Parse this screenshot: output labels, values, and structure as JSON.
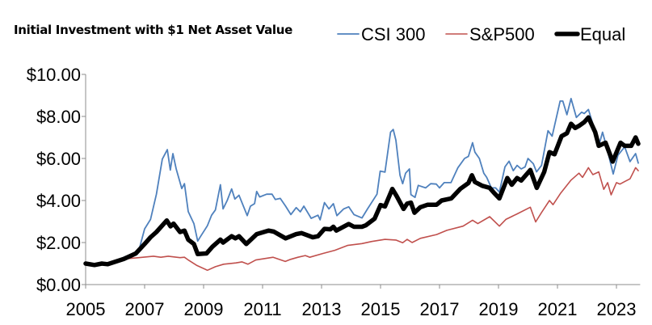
{
  "chart_data": {
    "type": "line",
    "title": "Initial Investment with $1 Net Asset Value",
    "xlabel": "",
    "ylabel": "",
    "xlim": [
      2005,
      2023.75
    ],
    "ylim": [
      0,
      10
    ],
    "x_ticks": [
      "2005",
      "2007",
      "2009",
      "2011",
      "2013",
      "2015",
      "2017",
      "2019",
      "2021",
      "2023"
    ],
    "y_ticks": [
      "$0.00",
      "$2.00",
      "$4.00",
      "$6.00",
      "$8.00",
      "$10.00"
    ],
    "grid": false,
    "legend_position": "top-right",
    "series": [
      {
        "name": "CSI 300",
        "color": "#4F81BD",
        "points": [
          [
            2005,
            1.0
          ],
          [
            2005.3,
            0.95
          ],
          [
            2005.6,
            1.0
          ],
          [
            2006.0,
            1.1
          ],
          [
            2006.3,
            1.3
          ],
          [
            2006.8,
            1.6
          ],
          [
            2007.0,
            2.65
          ],
          [
            2007.2,
            3.1
          ],
          [
            2007.4,
            4.3
          ],
          [
            2007.6,
            5.97
          ],
          [
            2007.77,
            6.42
          ],
          [
            2007.87,
            5.45
          ],
          [
            2007.96,
            6.23
          ],
          [
            2008.07,
            5.5
          ],
          [
            2008.26,
            4.57
          ],
          [
            2008.35,
            4.8
          ],
          [
            2008.48,
            3.47
          ],
          [
            2008.67,
            2.9
          ],
          [
            2008.8,
            2.07
          ],
          [
            2008.9,
            2.3
          ],
          [
            2009.13,
            2.8
          ],
          [
            2009.27,
            3.3
          ],
          [
            2009.4,
            3.55
          ],
          [
            2009.57,
            4.75
          ],
          [
            2009.66,
            3.6
          ],
          [
            2009.8,
            4.0
          ],
          [
            2009.95,
            4.55
          ],
          [
            2010.06,
            4.07
          ],
          [
            2010.2,
            4.25
          ],
          [
            2010.48,
            3.28
          ],
          [
            2010.59,
            3.73
          ],
          [
            2010.73,
            3.85
          ],
          [
            2010.8,
            4.43
          ],
          [
            2010.9,
            4.17
          ],
          [
            2011.14,
            4.3
          ],
          [
            2011.32,
            4.3
          ],
          [
            2011.43,
            4.05
          ],
          [
            2011.6,
            4.1
          ],
          [
            2011.78,
            3.73
          ],
          [
            2011.96,
            3.33
          ],
          [
            2012.14,
            3.66
          ],
          [
            2012.28,
            3.46
          ],
          [
            2012.4,
            3.73
          ],
          [
            2012.65,
            3.15
          ],
          [
            2012.88,
            3.3
          ],
          [
            2012.95,
            3.08
          ],
          [
            2013.1,
            3.9
          ],
          [
            2013.25,
            3.6
          ],
          [
            2013.4,
            3.85
          ],
          [
            2013.52,
            3.28
          ],
          [
            2013.75,
            3.6
          ],
          [
            2013.92,
            3.7
          ],
          [
            2014.1,
            3.33
          ],
          [
            2014.37,
            3.17
          ],
          [
            2014.56,
            3.6
          ],
          [
            2014.88,
            4.3
          ],
          [
            2014.99,
            5.4
          ],
          [
            2015.15,
            5.35
          ],
          [
            2015.34,
            7.25
          ],
          [
            2015.43,
            7.38
          ],
          [
            2015.52,
            6.87
          ],
          [
            2015.66,
            5.2
          ],
          [
            2015.75,
            4.8
          ],
          [
            2015.85,
            5.3
          ],
          [
            2015.98,
            5.5
          ],
          [
            2016.03,
            4.28
          ],
          [
            2016.17,
            4.15
          ],
          [
            2016.28,
            4.72
          ],
          [
            2016.53,
            4.6
          ],
          [
            2016.7,
            4.8
          ],
          [
            2016.89,
            4.78
          ],
          [
            2017.0,
            4.6
          ],
          [
            2017.16,
            4.85
          ],
          [
            2017.39,
            4.85
          ],
          [
            2017.62,
            5.55
          ],
          [
            2017.85,
            6.0
          ],
          [
            2017.98,
            6.1
          ],
          [
            2018.12,
            6.75
          ],
          [
            2018.2,
            6.3
          ],
          [
            2018.35,
            6.0
          ],
          [
            2018.5,
            5.3
          ],
          [
            2018.6,
            5.1
          ],
          [
            2018.76,
            4.6
          ],
          [
            2018.9,
            4.6
          ],
          [
            2019.03,
            4.4
          ],
          [
            2019.22,
            5.6
          ],
          [
            2019.36,
            5.87
          ],
          [
            2019.5,
            5.42
          ],
          [
            2019.63,
            5.67
          ],
          [
            2019.77,
            5.5
          ],
          [
            2019.9,
            5.6
          ],
          [
            2020.0,
            6.0
          ],
          [
            2020.18,
            5.75
          ],
          [
            2020.29,
            5.36
          ],
          [
            2020.46,
            5.67
          ],
          [
            2020.68,
            7.32
          ],
          [
            2020.82,
            7.06
          ],
          [
            2021.09,
            8.73
          ],
          [
            2021.18,
            8.73
          ],
          [
            2021.32,
            8.08
          ],
          [
            2021.46,
            8.85
          ],
          [
            2021.64,
            7.95
          ],
          [
            2021.82,
            8.2
          ],
          [
            2021.91,
            8.14
          ],
          [
            2022.05,
            8.33
          ],
          [
            2022.23,
            7.5
          ],
          [
            2022.4,
            6.6
          ],
          [
            2022.53,
            7.25
          ],
          [
            2022.68,
            6.47
          ],
          [
            2022.89,
            5.26
          ],
          [
            2023.05,
            6.15
          ],
          [
            2023.28,
            6.55
          ],
          [
            2023.46,
            5.85
          ],
          [
            2023.65,
            6.23
          ],
          [
            2023.74,
            5.78
          ]
        ]
      },
      {
        "name": "S&P500",
        "color": "#C0504D",
        "points": [
          [
            2005,
            1.0
          ],
          [
            2005.5,
            0.97
          ],
          [
            2006.0,
            1.1
          ],
          [
            2006.3,
            1.22
          ],
          [
            2006.8,
            1.28
          ],
          [
            2007.3,
            1.35
          ],
          [
            2007.55,
            1.3
          ],
          [
            2007.8,
            1.35
          ],
          [
            2008.2,
            1.28
          ],
          [
            2008.35,
            1.3
          ],
          [
            2008.5,
            1.15
          ],
          [
            2008.76,
            0.92
          ],
          [
            2009.13,
            0.68
          ],
          [
            2009.4,
            0.85
          ],
          [
            2009.68,
            0.97
          ],
          [
            2010.1,
            1.03
          ],
          [
            2010.3,
            1.08
          ],
          [
            2010.5,
            0.97
          ],
          [
            2010.77,
            1.17
          ],
          [
            2011.36,
            1.3
          ],
          [
            2011.77,
            1.1
          ],
          [
            2011.95,
            1.2
          ],
          [
            2012.2,
            1.3
          ],
          [
            2012.45,
            1.38
          ],
          [
            2012.6,
            1.3
          ],
          [
            2013.05,
            1.48
          ],
          [
            2013.45,
            1.63
          ],
          [
            2013.88,
            1.86
          ],
          [
            2014.37,
            1.95
          ],
          [
            2014.7,
            2.05
          ],
          [
            2015.15,
            2.15
          ],
          [
            2015.52,
            2.12
          ],
          [
            2015.75,
            1.99
          ],
          [
            2015.9,
            2.15
          ],
          [
            2016.07,
            2.0
          ],
          [
            2016.35,
            2.2
          ],
          [
            2016.9,
            2.38
          ],
          [
            2017.25,
            2.58
          ],
          [
            2017.8,
            2.78
          ],
          [
            2018.12,
            3.06
          ],
          [
            2018.3,
            2.9
          ],
          [
            2018.7,
            3.23
          ],
          [
            2019.03,
            2.78
          ],
          [
            2019.25,
            3.1
          ],
          [
            2019.63,
            3.36
          ],
          [
            2020.08,
            3.68
          ],
          [
            2020.26,
            2.98
          ],
          [
            2020.46,
            3.43
          ],
          [
            2020.73,
            4.0
          ],
          [
            2020.85,
            3.8
          ],
          [
            2021.1,
            4.33
          ],
          [
            2021.46,
            4.97
          ],
          [
            2021.73,
            5.3
          ],
          [
            2021.85,
            5.1
          ],
          [
            2022.05,
            5.56
          ],
          [
            2022.2,
            5.23
          ],
          [
            2022.4,
            5.36
          ],
          [
            2022.57,
            4.53
          ],
          [
            2022.7,
            4.85
          ],
          [
            2022.82,
            4.27
          ],
          [
            2023.0,
            4.85
          ],
          [
            2023.12,
            4.78
          ],
          [
            2023.28,
            4.9
          ],
          [
            2023.46,
            5.03
          ],
          [
            2023.65,
            5.56
          ],
          [
            2023.74,
            5.42
          ]
        ]
      },
      {
        "name": "Equal",
        "color": "#000000",
        "points": [
          [
            2005,
            1.0
          ],
          [
            2005.3,
            0.93
          ],
          [
            2005.55,
            1.0
          ],
          [
            2005.75,
            0.97
          ],
          [
            2006.3,
            1.22
          ],
          [
            2006.7,
            1.48
          ],
          [
            2007.0,
            1.93
          ],
          [
            2007.2,
            2.25
          ],
          [
            2007.4,
            2.5
          ],
          [
            2007.75,
            3.05
          ],
          [
            2007.88,
            2.77
          ],
          [
            2007.98,
            2.9
          ],
          [
            2008.2,
            2.5
          ],
          [
            2008.35,
            2.57
          ],
          [
            2008.48,
            2.14
          ],
          [
            2008.67,
            1.93
          ],
          [
            2008.8,
            1.45
          ],
          [
            2009.1,
            1.48
          ],
          [
            2009.3,
            1.8
          ],
          [
            2009.57,
            2.14
          ],
          [
            2009.66,
            2.0
          ],
          [
            2009.95,
            2.3
          ],
          [
            2010.08,
            2.2
          ],
          [
            2010.2,
            2.3
          ],
          [
            2010.45,
            1.93
          ],
          [
            2010.8,
            2.4
          ],
          [
            2011.2,
            2.57
          ],
          [
            2011.38,
            2.52
          ],
          [
            2011.78,
            2.2
          ],
          [
            2012.14,
            2.4
          ],
          [
            2012.32,
            2.45
          ],
          [
            2012.7,
            2.25
          ],
          [
            2012.88,
            2.3
          ],
          [
            2013.1,
            2.65
          ],
          [
            2013.3,
            2.63
          ],
          [
            2013.4,
            2.75
          ],
          [
            2013.5,
            2.57
          ],
          [
            2013.92,
            2.88
          ],
          [
            2014.1,
            2.75
          ],
          [
            2014.37,
            2.75
          ],
          [
            2014.5,
            2.82
          ],
          [
            2014.8,
            3.14
          ],
          [
            2015.0,
            3.78
          ],
          [
            2015.15,
            3.72
          ],
          [
            2015.4,
            4.55
          ],
          [
            2015.55,
            4.2
          ],
          [
            2015.78,
            3.6
          ],
          [
            2015.9,
            3.85
          ],
          [
            2016.03,
            3.9
          ],
          [
            2016.15,
            3.42
          ],
          [
            2016.35,
            3.68
          ],
          [
            2016.6,
            3.8
          ],
          [
            2016.9,
            3.8
          ],
          [
            2017.07,
            4.0
          ],
          [
            2017.4,
            4.1
          ],
          [
            2017.7,
            4.55
          ],
          [
            2017.98,
            4.83
          ],
          [
            2018.1,
            5.2
          ],
          [
            2018.2,
            4.88
          ],
          [
            2018.45,
            4.7
          ],
          [
            2018.7,
            4.6
          ],
          [
            2018.85,
            4.36
          ],
          [
            2019.03,
            4.1
          ],
          [
            2019.3,
            5.07
          ],
          [
            2019.45,
            4.75
          ],
          [
            2019.63,
            5.07
          ],
          [
            2019.77,
            4.95
          ],
          [
            2020.08,
            5.45
          ],
          [
            2020.3,
            4.6
          ],
          [
            2020.55,
            5.36
          ],
          [
            2020.73,
            6.3
          ],
          [
            2020.9,
            6.2
          ],
          [
            2021.14,
            7.06
          ],
          [
            2021.32,
            7.2
          ],
          [
            2021.46,
            7.65
          ],
          [
            2021.6,
            7.45
          ],
          [
            2021.73,
            7.55
          ],
          [
            2021.9,
            7.72
          ],
          [
            2022.05,
            7.95
          ],
          [
            2022.28,
            7.25
          ],
          [
            2022.4,
            6.6
          ],
          [
            2022.63,
            6.75
          ],
          [
            2022.87,
            5.85
          ],
          [
            2023.05,
            6.45
          ],
          [
            2023.14,
            6.75
          ],
          [
            2023.28,
            6.6
          ],
          [
            2023.5,
            6.6
          ],
          [
            2023.65,
            7.0
          ],
          [
            2023.74,
            6.7
          ]
        ]
      }
    ]
  }
}
